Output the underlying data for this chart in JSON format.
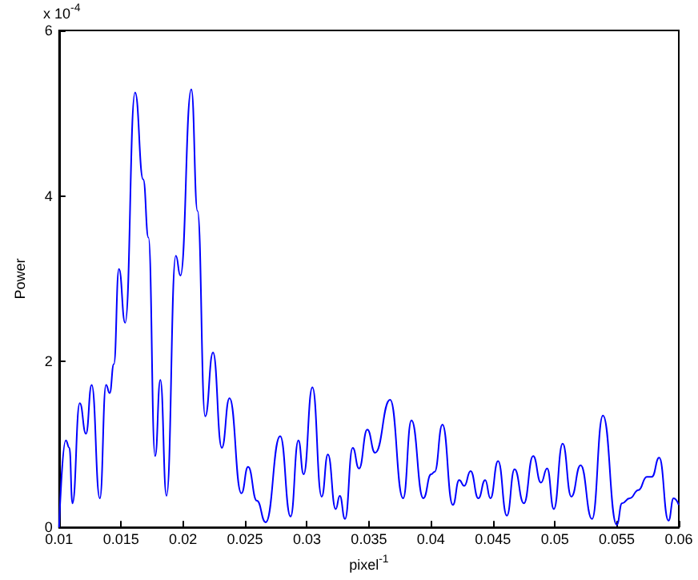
{
  "chart_data": {
    "type": "line",
    "xlabel": "pixel$^{-1}$",
    "ylabel": "Power",
    "annotations": [
      "x 10$^{-4}$"
    ],
    "xlim": [
      0.01,
      0.06
    ],
    "xticks": [
      0.01,
      0.015,
      0.02,
      0.025,
      0.03,
      0.035,
      0.04,
      0.045,
      0.05,
      0.055,
      0.06
    ],
    "ylim": [
      0,
      6
    ],
    "yticks": [
      0,
      2,
      4,
      6
    ],
    "grid": false,
    "marker": "none",
    "line_style": "solid",
    "series": [
      {
        "color": "#0000ff",
        "x": [
          0.01,
          0.01054,
          0.01083,
          0.01108,
          0.01167,
          0.01217,
          0.01263,
          0.01329,
          0.01379,
          0.01408,
          0.01442,
          0.01483,
          0.01533,
          0.01613,
          0.01679,
          0.01721,
          0.01775,
          0.01817,
          0.01867,
          0.01942,
          0.01979,
          0.02067,
          0.02117,
          0.02179,
          0.02242,
          0.02313,
          0.02375,
          0.02471,
          0.02525,
          0.02596,
          0.02667,
          0.02784,
          0.02868,
          0.02931,
          0.02973,
          0.03044,
          0.03119,
          0.03169,
          0.03232,
          0.03265,
          0.03307,
          0.03369,
          0.0342,
          0.03487,
          0.0355,
          0.03671,
          0.03776,
          0.03843,
          0.03939,
          0.04002,
          0.0403,
          0.04093,
          0.04177,
          0.04228,
          0.04269,
          0.0432,
          0.04383,
          0.04438,
          0.0448,
          0.04542,
          0.04613,
          0.04675,
          0.0475,
          0.04825,
          0.04888,
          0.04938,
          0.04992,
          0.05063,
          0.05133,
          0.05208,
          0.053,
          0.05388,
          0.055,
          0.05542,
          0.05604,
          0.05675,
          0.05742,
          0.05783,
          0.05842,
          0.05917,
          0.05958,
          0.06
        ],
        "values": [
          0,
          1.05,
          0.96,
          0.29,
          1.5,
          1.13,
          1.72,
          0.35,
          1.72,
          1.62,
          1.97,
          3.12,
          2.47,
          5.25,
          4.2,
          3.5,
          0.86,
          1.78,
          0.38,
          3.28,
          3.04,
          5.29,
          3.82,
          1.34,
          2.11,
          0.96,
          1.56,
          0.41,
          0.73,
          0.32,
          0.06,
          1.1,
          0.13,
          1.05,
          0.64,
          1.69,
          0.37,
          0.88,
          0.22,
          0.38,
          0.1,
          0.96,
          0.71,
          1.18,
          0.9,
          1.54,
          0.35,
          1.29,
          0.35,
          0.64,
          0.67,
          1.24,
          0.27,
          0.57,
          0.5,
          0.68,
          0.35,
          0.57,
          0.35,
          0.8,
          0.14,
          0.7,
          0.29,
          0.86,
          0.54,
          0.71,
          0.22,
          1.01,
          0.37,
          0.75,
          0.1,
          1.35,
          0.03,
          0.29,
          0.35,
          0.45,
          0.61,
          0.61,
          0.84,
          0.08,
          0.35,
          0.27
        ]
      }
    ]
  }
}
